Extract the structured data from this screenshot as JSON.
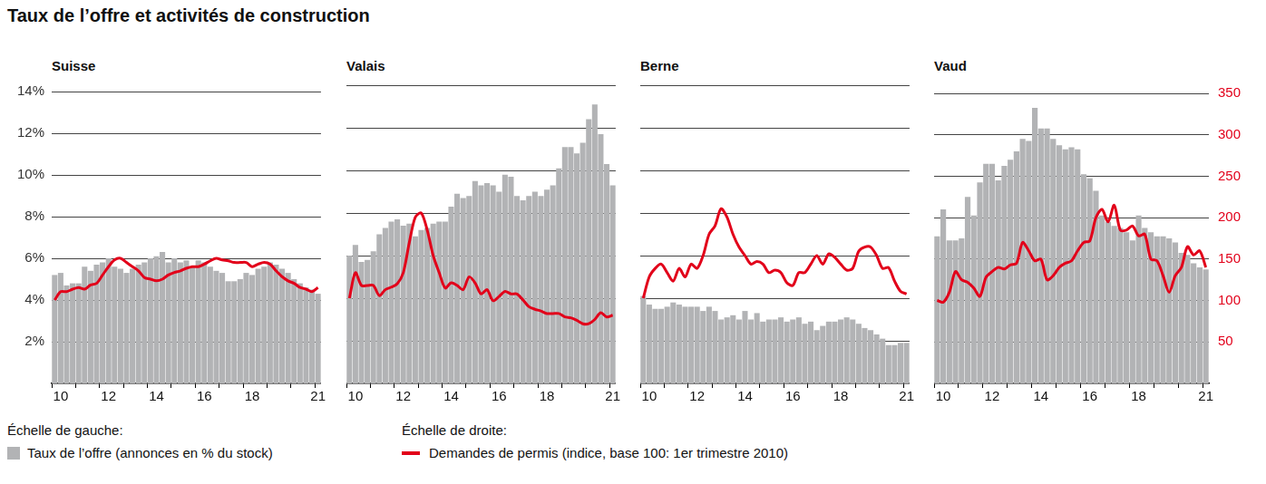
{
  "title": "Taux de l’offre et activités de construction",
  "left_scale_label": "Échelle de gauche:",
  "right_scale_label": "Échelle de droite:",
  "chart_data": [
    {
      "type": "bar",
      "title": "Suisse",
      "categories": [
        null,
        "10",
        null,
        null,
        null,
        null,
        null,
        null,
        null,
        "12",
        null,
        null,
        null,
        null,
        null,
        null,
        null,
        "14",
        null,
        null,
        null,
        null,
        null,
        null,
        null,
        "16",
        null,
        null,
        null,
        null,
        null,
        null,
        null,
        "18",
        null,
        null,
        null,
        null,
        null,
        null,
        null,
        null,
        null,
        null,
        "21"
      ],
      "series": [
        {
          "name": "Taux de l’offre (annonces en % du stock)",
          "type": "bar",
          "color": "#b2b3b5",
          "values": [
            5.2,
            5.3,
            4.7,
            4.8,
            4.8,
            5.6,
            5.4,
            5.7,
            5.8,
            6.0,
            5.6,
            5.5,
            5.3,
            5.5,
            5.7,
            5.8,
            6.0,
            6.1,
            6.3,
            5.8,
            6.0,
            5.8,
            5.9,
            5.6,
            5.9,
            5.8,
            5.6,
            5.4,
            5.3,
            4.9,
            4.9,
            5.0,
            5.3,
            5.2,
            5.5,
            5.6,
            5.8,
            5.7,
            5.5,
            5.3,
            5.0,
            4.8,
            4.6,
            4.5,
            4.3
          ]
        },
        {
          "name": "Demandes de permis (indice, base 100: 1er trimestre 2010)",
          "type": "line",
          "color": "#e2001a",
          "axis": "y2",
          "values": [
            100,
            110,
            110,
            113,
            115,
            113,
            118,
            120,
            130,
            140,
            148,
            150,
            145,
            140,
            135,
            127,
            125,
            123,
            125,
            130,
            133,
            135,
            138,
            140,
            140,
            143,
            147,
            150,
            148,
            147,
            145,
            145,
            145,
            140,
            143,
            145,
            143,
            135,
            128,
            123,
            120,
            115,
            113,
            110,
            115
          ]
        }
      ],
      "ylim": [
        0,
        14
      ],
      "yticks": [
        {
          "value": 2,
          "label": "2%"
        },
        {
          "value": 4,
          "label": "4%"
        },
        {
          "value": 6,
          "label": "6%"
        },
        {
          "value": 8,
          "label": "8%"
        },
        {
          "value": 10,
          "label": "10%"
        },
        {
          "value": 12,
          "label": "12%"
        },
        {
          "value": 14,
          "label": "14%"
        }
      ],
      "y2lim": [
        0,
        350
      ],
      "grid": true
    },
    {
      "type": "bar",
      "title": "Valais",
      "categories": [
        null,
        "10",
        null,
        null,
        null,
        null,
        null,
        null,
        null,
        "12",
        null,
        null,
        null,
        null,
        null,
        null,
        null,
        "14",
        null,
        null,
        null,
        null,
        null,
        null,
        null,
        "16",
        null,
        null,
        null,
        null,
        null,
        null,
        null,
        "18",
        null,
        null,
        null,
        null,
        null,
        null,
        null,
        null,
        null,
        null,
        "21"
      ],
      "series": [
        {
          "name": "Taux de l’offre (annonces en % du stock)",
          "type": "bar",
          "color": "#b2b3b5",
          "values": [
            6.0,
            6.5,
            5.7,
            5.8,
            6.2,
            7.0,
            7.3,
            7.6,
            7.7,
            7.4,
            7.5,
            6.9,
            7.2,
            7.3,
            7.5,
            7.6,
            7.6,
            8.3,
            8.9,
            8.7,
            8.8,
            9.5,
            9.3,
            9.4,
            9.3,
            9.0,
            9.8,
            9.7,
            8.8,
            8.6,
            8.8,
            9.0,
            8.8,
            9.1,
            9.3,
            10.1,
            11.1,
            11.1,
            10.8,
            11.3,
            12.4,
            13.1,
            11.7,
            10.3,
            9.3
          ]
        },
        {
          "name": "Demandes de permis (indice, base 100: 1er trimestre 2010)",
          "type": "line",
          "color": "#e2001a",
          "axis": "y2",
          "values": [
            100,
            130,
            115,
            115,
            115,
            103,
            110,
            113,
            117,
            130,
            165,
            195,
            200,
            180,
            150,
            130,
            112,
            118,
            115,
            110,
            125,
            118,
            105,
            110,
            97,
            102,
            108,
            105,
            105,
            98,
            90,
            87,
            85,
            82,
            82,
            82,
            78,
            77,
            74,
            70,
            70,
            75,
            83,
            78,
            80
          ]
        }
      ],
      "ylim": [
        0,
        14
      ],
      "yticks": [
        {
          "value": 2,
          "label": "2%"
        },
        {
          "value": 4,
          "label": "4%"
        },
        {
          "value": 6,
          "label": "6%"
        },
        {
          "value": 8,
          "label": "8%"
        },
        {
          "value": 10,
          "label": "10%"
        },
        {
          "value": 12,
          "label": "12%"
        },
        {
          "value": 14,
          "label": "14%"
        }
      ],
      "y2lim": [
        0,
        350
      ],
      "tick_labels": "x",
      "grid": true
    },
    {
      "type": "bar",
      "title": "Berne",
      "categories": [
        null,
        "10",
        null,
        null,
        null,
        null,
        null,
        null,
        null,
        "12",
        null,
        null,
        null,
        null,
        null,
        null,
        null,
        "14",
        null,
        null,
        null,
        null,
        null,
        null,
        null,
        "16",
        null,
        null,
        null,
        null,
        null,
        null,
        null,
        "18",
        null,
        null,
        null,
        null,
        null,
        null,
        null,
        null,
        null,
        null,
        "21"
      ],
      "series": [
        {
          "name": "Taux de l’offre (annonces en % du stock)",
          "type": "bar",
          "color": "#b2b3b5",
          "values": [
            4.1,
            3.7,
            3.5,
            3.5,
            3.6,
            3.8,
            3.7,
            3.6,
            3.6,
            3.6,
            3.4,
            3.6,
            3.4,
            3.0,
            3.1,
            3.2,
            3.0,
            3.4,
            3.0,
            3.3,
            2.9,
            3.0,
            3.0,
            3.1,
            2.9,
            3.0,
            3.1,
            2.8,
            2.9,
            2.5,
            2.7,
            2.9,
            2.9,
            3.0,
            3.1,
            3.0,
            2.8,
            2.6,
            2.5,
            2.3,
            2.1,
            1.8,
            1.8,
            1.9,
            1.9
          ]
        },
        {
          "name": "Demandes de permis (indice, base 100: 1er trimestre 2010)",
          "type": "line",
          "color": "#e2001a",
          "axis": "y2",
          "values": [
            100,
            125,
            135,
            140,
            130,
            120,
            135,
            125,
            140,
            135,
            150,
            175,
            185,
            205,
            195,
            175,
            160,
            150,
            140,
            143,
            140,
            130,
            133,
            130,
            118,
            115,
            130,
            130,
            140,
            150,
            140,
            152,
            148,
            140,
            133,
            135,
            155,
            160,
            160,
            150,
            135,
            136,
            120,
            108,
            105
          ]
        }
      ],
      "ylim": [
        0,
        14
      ],
      "yticks": [
        {
          "value": 2,
          "label": "2%"
        },
        {
          "value": 4,
          "label": "4%"
        },
        {
          "value": 6,
          "label": "6%"
        },
        {
          "value": 8,
          "label": "8%"
        },
        {
          "value": 10,
          "label": "10%"
        },
        {
          "value": 12,
          "label": "12%"
        },
        {
          "value": 14,
          "label": "14%"
        }
      ],
      "y2lim": [
        0,
        350
      ],
      "tick_labels": "x",
      "grid": true
    },
    {
      "type": "bar",
      "title": "Vaud",
      "categories": [
        null,
        "10",
        null,
        null,
        null,
        null,
        null,
        null,
        null,
        "12",
        null,
        null,
        null,
        null,
        null,
        null,
        null,
        "14",
        null,
        null,
        null,
        null,
        null,
        null,
        null,
        "16",
        null,
        null,
        null,
        null,
        null,
        null,
        null,
        "18",
        null,
        null,
        null,
        null,
        null,
        null,
        null,
        null,
        null,
        null,
        "21"
      ],
      "series": [
        {
          "name": "Taux de l’offre (annonces en % du stock)",
          "type": "bar",
          "color": "#b2b3b5",
          "values": [
            7.1,
            8.4,
            6.9,
            6.9,
            7.0,
            9.0,
            8.1,
            9.7,
            10.6,
            10.6,
            9.8,
            10.5,
            10.8,
            11.2,
            11.8,
            11.7,
            13.3,
            12.3,
            12.3,
            11.8,
            11.5,
            11.3,
            11.4,
            11.3,
            10.1,
            9.9,
            9.3,
            8.1,
            7.8,
            7.6,
            7.5,
            7.3,
            6.9,
            8.1,
            7.5,
            7.3,
            7.1,
            7.1,
            7.0,
            6.8,
            6.3,
            6.2,
            5.8,
            5.6,
            5.5
          ]
        },
        {
          "name": "Demandes de permis (indice, base 100: 1er trimestre 2010)",
          "type": "line",
          "color": "#e2001a",
          "axis": "y2",
          "values": [
            100,
            98,
            110,
            135,
            125,
            122,
            115,
            105,
            128,
            135,
            140,
            138,
            143,
            145,
            170,
            160,
            148,
            150,
            125,
            130,
            140,
            145,
            148,
            160,
            170,
            172,
            200,
            210,
            195,
            215,
            185,
            185,
            190,
            178,
            180,
            150,
            148,
            130,
            110,
            130,
            140,
            165,
            155,
            160,
            140
          ]
        }
      ],
      "ylim": [
        0,
        14
      ],
      "y2lim": [
        0,
        350
      ],
      "y2ticks": [
        50,
        100,
        150,
        200,
        250,
        300,
        350
      ],
      "grid": true
    }
  ]
}
